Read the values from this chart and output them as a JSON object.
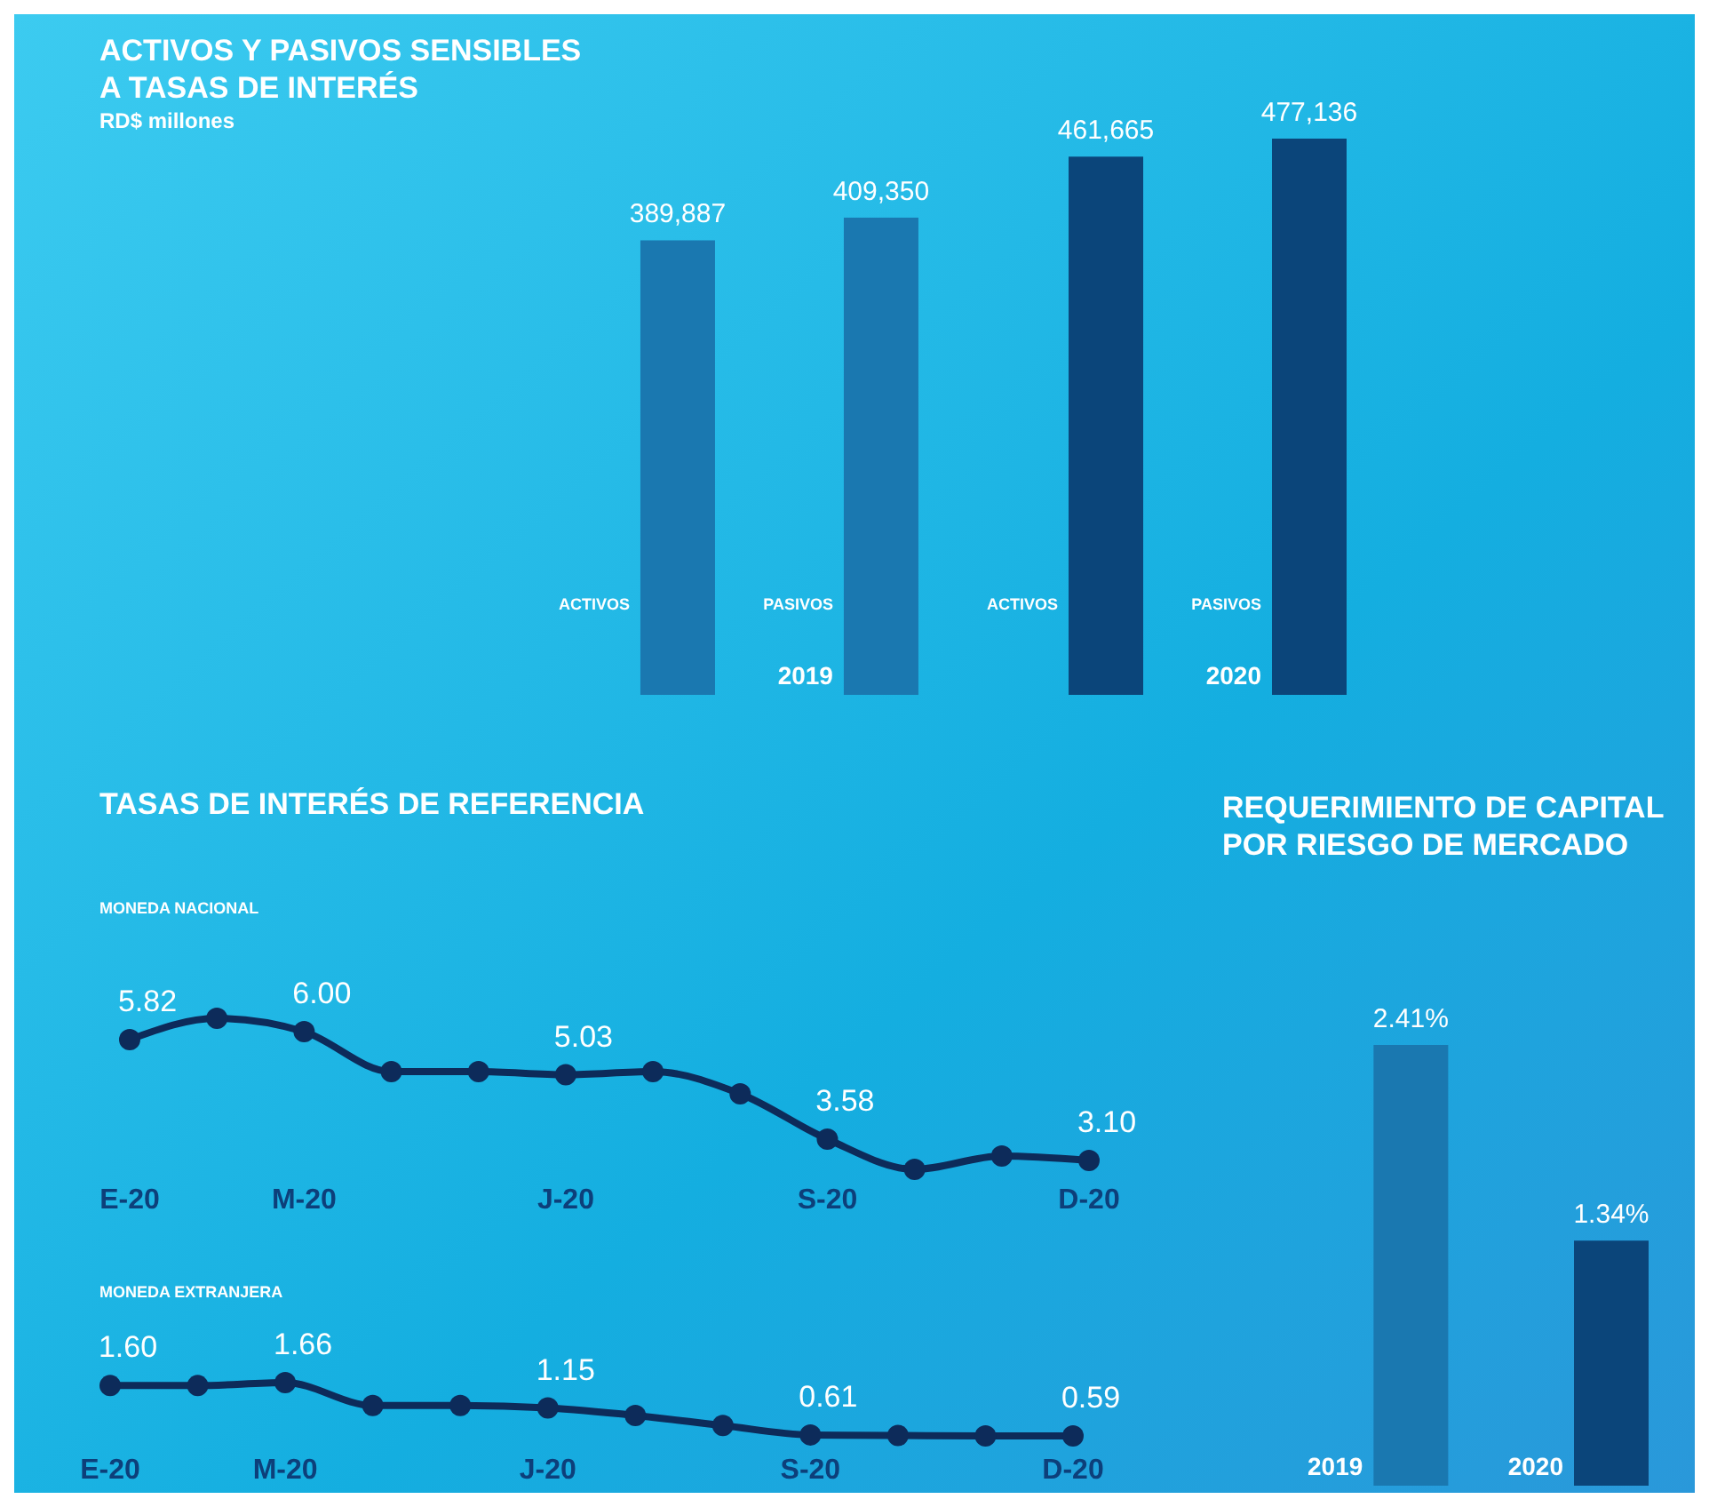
{
  "chart_data": [
    {
      "type": "bar",
      "title": "ACTIVOS Y PASIVOS SENSIBLES A TASAS DE INTERÉS",
      "ylabel": "RD$ millones",
      "categories": [
        "2019",
        "2020"
      ],
      "series": [
        {
          "name": "ACTIVOS",
          "colors": [
            "#1a78b0",
            "#0b457a"
          ],
          "values": [
            389887,
            461665
          ],
          "value_labels": [
            "389,887",
            "461,665"
          ]
        },
        {
          "name": "PASIVOS",
          "colors": [
            "#1a78b0",
            "#0b457a"
          ],
          "values": [
            409350,
            477136
          ],
          "value_labels": [
            "409,350",
            "477,136"
          ]
        }
      ]
    },
    {
      "type": "line",
      "title": "TASAS DE INTERÉS DE REFERENCIA",
      "subtitle": "MONEDA NACIONAL",
      "marker": "circle",
      "categories": [
        "E-20",
        null,
        "M-20",
        null,
        null,
        "J-20",
        null,
        null,
        "S-20",
        null,
        null,
        "D-20"
      ],
      "series": [
        {
          "color": "#0d2b5a",
          "values": [
            5.82,
            6.3,
            6.0,
            5.1,
            5.1,
            5.03,
            5.1,
            4.6,
            3.58,
            2.9,
            3.2,
            3.1
          ],
          "value_labels": [
            "5.82",
            null,
            "6.00",
            null,
            null,
            "5.03",
            null,
            null,
            "3.58",
            null,
            null,
            "3.10"
          ]
        }
      ]
    },
    {
      "type": "line",
      "subtitle": "MONEDA EXTRANJERA",
      "marker": "circle",
      "categories": [
        "E-20",
        null,
        "M-20",
        null,
        null,
        "J-20",
        null,
        null,
        "S-20",
        null,
        null,
        "D-20"
      ],
      "series": [
        {
          "color": "#0d2b5a",
          "values": [
            1.6,
            1.6,
            1.66,
            1.2,
            1.2,
            1.15,
            1.0,
            0.8,
            0.61,
            0.6,
            0.59,
            0.59
          ],
          "value_labels": [
            "1.60",
            null,
            "1.66",
            null,
            null,
            "1.15",
            null,
            null,
            "0.61",
            null,
            null,
            "0.59"
          ]
        }
      ]
    },
    {
      "type": "bar",
      "title": "REQUERIMIENTO DE CAPITAL POR RIESGO DE MERCADO",
      "categories": [
        "2019",
        "2020"
      ],
      "values": [
        2.41,
        1.34
      ],
      "colors": [
        "#1a78b0",
        "#0b457a"
      ],
      "value_labels": [
        "2.41%",
        "1.34%"
      ]
    }
  ]
}
